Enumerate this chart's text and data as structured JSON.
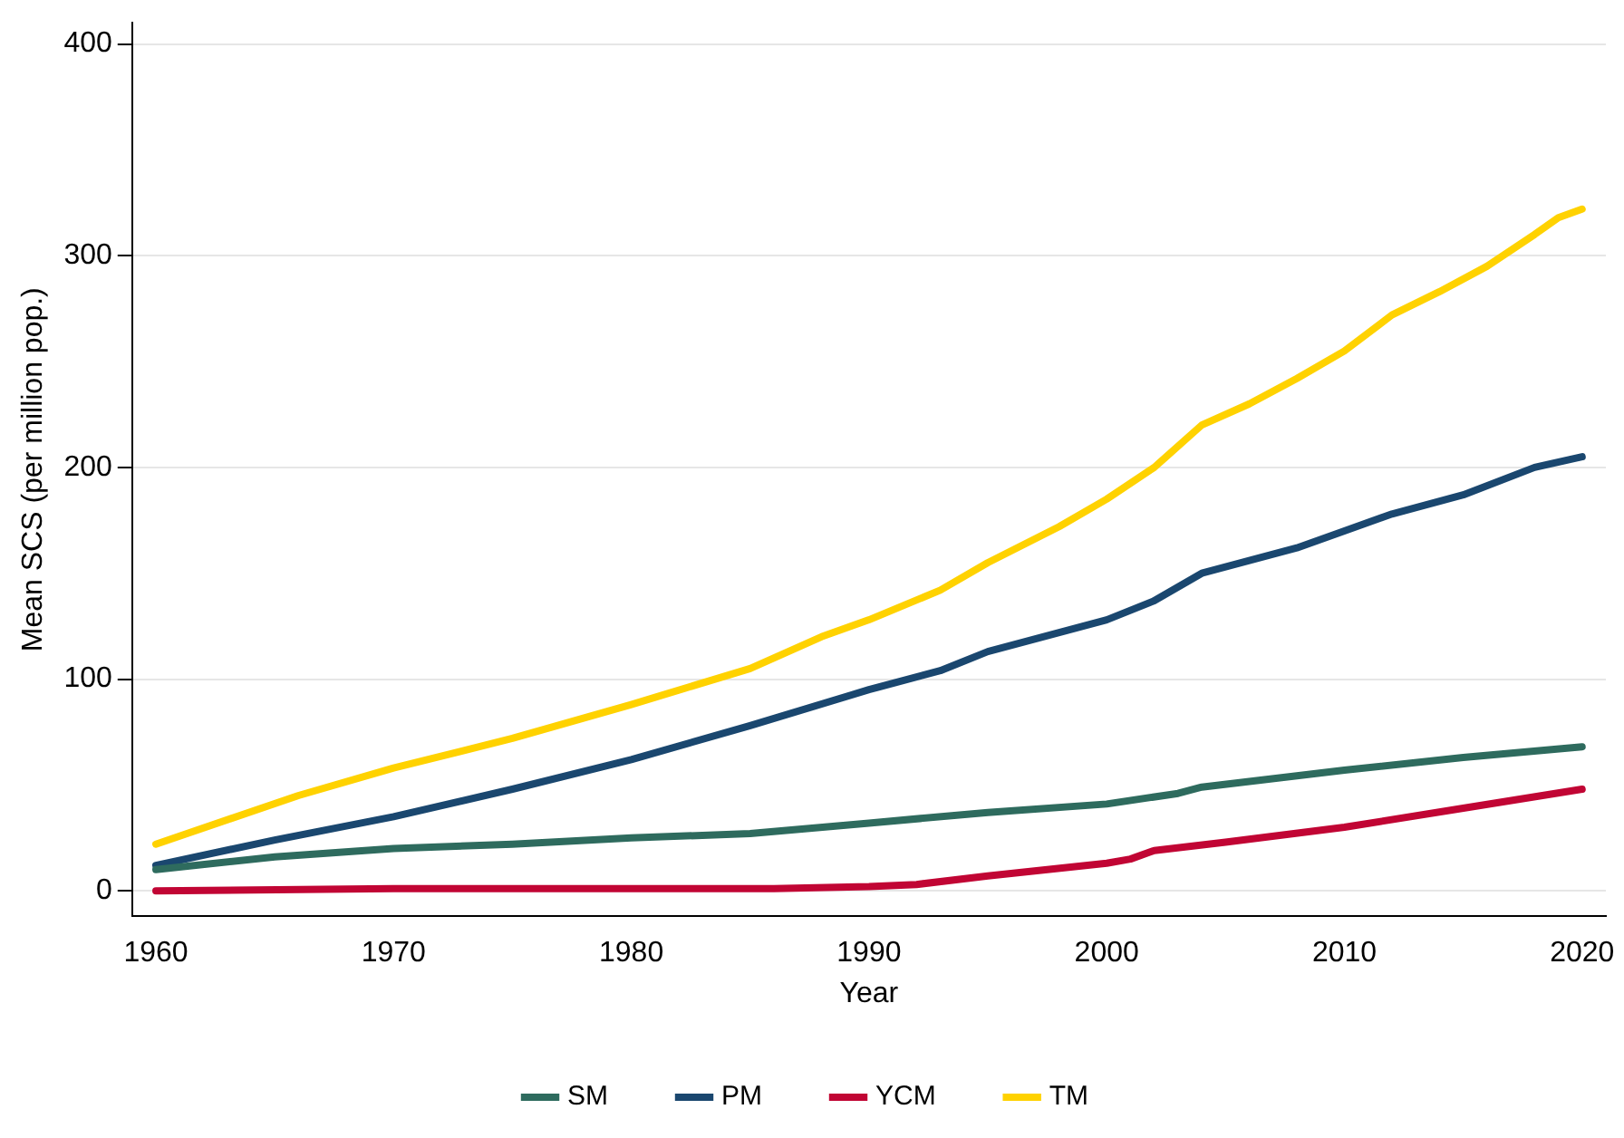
{
  "chart_data": {
    "type": "line",
    "xlabel": "Year",
    "ylabel": "Mean SCS (per million pop.)",
    "xlim": [
      1959,
      2021
    ],
    "xticks": [
      1960,
      1970,
      1980,
      1990,
      2000,
      2010,
      2020
    ],
    "ylim": [
      -12,
      410
    ],
    "yticks": [
      0,
      100,
      200,
      300,
      400
    ],
    "grid": "y",
    "legend": "bottom",
    "marker": "none",
    "line_style": "solid",
    "series": [
      {
        "name": "SM",
        "color": "#2e6b5e",
        "x": [
          1960,
          1965,
          1970,
          1975,
          1980,
          1985,
          1990,
          1995,
          2000,
          2003,
          2004,
          2010,
          2015,
          2020
        ],
        "values": [
          10,
          16,
          20,
          22,
          25,
          27,
          32,
          37,
          41,
          46,
          49,
          57,
          63,
          68
        ]
      },
      {
        "name": "PM",
        "color": "#1a476f",
        "x": [
          1960,
          1965,
          1970,
          1975,
          1980,
          1985,
          1990,
          1993,
          1995,
          2000,
          2002,
          2004,
          2006,
          2008,
          2010,
          2012,
          2015,
          2018,
          2020
        ],
        "values": [
          12,
          24,
          35,
          48,
          62,
          78,
          95,
          104,
          113,
          128,
          137,
          150,
          156,
          162,
          170,
          178,
          187,
          200,
          205
        ]
      },
      {
        "name": "YCM",
        "color": "#c10534",
        "x": [
          1960,
          1970,
          1980,
          1986,
          1990,
          1992,
          1995,
          2000,
          2001,
          2002,
          2005,
          2010,
          2015,
          2020
        ],
        "values": [
          0,
          1,
          1,
          1,
          2,
          3,
          7,
          13,
          15,
          19,
          23,
          30,
          39,
          48
        ]
      },
      {
        "name": "TM",
        "color": "#ffd200",
        "x": [
          1960,
          1966,
          1970,
          1975,
          1980,
          1985,
          1988,
          1990,
          1993,
          1995,
          1998,
          2000,
          2002,
          2004,
          2006,
          2008,
          2010,
          2012,
          2014,
          2016,
          2018,
          2019,
          2020
        ],
        "values": [
          22,
          45,
          58,
          72,
          88,
          105,
          120,
          128,
          142,
          155,
          172,
          185,
          200,
          220,
          230,
          242,
          255,
          272,
          283,
          295,
          310,
          318,
          322
        ]
      }
    ]
  }
}
